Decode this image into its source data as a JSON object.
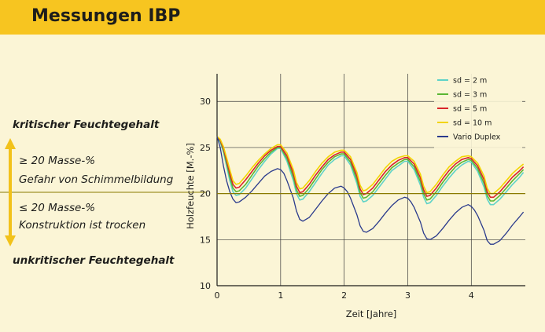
{
  "header": {
    "title": "Messungen IBP"
  },
  "side_labels": {
    "critical": "kritischer Feuchtegehalt",
    "above_line1": "≥ 20 Masse-%",
    "above_line2": "Gefahr von Schimmelbildung",
    "below_line1": "≤ 20 Masse-%",
    "below_line2": "Konstruktion ist trocken",
    "uncritical": "unkritischer Feuchtegehalt"
  },
  "colors": {
    "header_bg": "#f7c520",
    "page_bg": "#fbf5d6",
    "arrow": "#f2c21a",
    "threshold_line": "#8a7a00"
  },
  "chart_data": {
    "type": "line",
    "xlabel": "Zeit [Jahre]",
    "ylabel": "Holzfeuchte [M.-%]",
    "xlim": [
      0,
      4.85
    ],
    "ylim": [
      10,
      33
    ],
    "xticks": [
      0,
      1,
      2,
      3,
      4
    ],
    "yticks": [
      10,
      15,
      20,
      25,
      30
    ],
    "grid": true,
    "threshold": 20,
    "legend_position": "top-right",
    "series": [
      {
        "name": "sd = 2 m",
        "color": "#5fd3c8",
        "x": [
          0,
          0.05,
          0.1,
          0.15,
          0.2,
          0.25,
          0.3,
          0.35,
          0.45,
          0.55,
          0.65,
          0.75,
          0.85,
          0.95,
          1.0,
          1.1,
          1.2,
          1.25,
          1.3,
          1.35,
          1.45,
          1.55,
          1.65,
          1.75,
          1.85,
          1.95,
          2.0,
          2.1,
          2.2,
          2.25,
          2.3,
          2.35,
          2.45,
          2.55,
          2.65,
          2.75,
          2.85,
          2.95,
          3.0,
          3.1,
          3.2,
          3.25,
          3.3,
          3.35,
          3.45,
          3.55,
          3.65,
          3.75,
          3.85,
          3.95,
          4.0,
          4.1,
          4.2,
          4.25,
          4.3,
          4.35,
          4.45,
          4.55,
          4.65,
          4.75,
          4.82
        ],
        "y": [
          26.2,
          25.6,
          24.5,
          23,
          21.4,
          20.2,
          19.8,
          19.9,
          20.6,
          21.6,
          22.6,
          23.5,
          24.3,
          24.9,
          24.9,
          23.5,
          21.4,
          20,
          19.3,
          19.4,
          20.2,
          21.2,
          22.2,
          23.1,
          23.7,
          24.1,
          24.1,
          23.1,
          21.1,
          19.7,
          19.1,
          19.2,
          19.8,
          20.7,
          21.6,
          22.5,
          23,
          23.5,
          23.5,
          22.6,
          20.9,
          19.6,
          18.9,
          19,
          19.8,
          20.8,
          21.7,
          22.5,
          23.1,
          23.5,
          23.4,
          22.4,
          20.7,
          19.4,
          18.8,
          18.8,
          19.4,
          20.2,
          21,
          21.7,
          22.3
        ]
      },
      {
        "name": "sd = 3 m",
        "color": "#5bb634",
        "x": [
          0,
          0.05,
          0.1,
          0.15,
          0.2,
          0.25,
          0.3,
          0.35,
          0.45,
          0.55,
          0.65,
          0.75,
          0.85,
          0.95,
          1.0,
          1.1,
          1.2,
          1.25,
          1.3,
          1.35,
          1.45,
          1.55,
          1.65,
          1.75,
          1.85,
          1.95,
          2.0,
          2.1,
          2.2,
          2.25,
          2.3,
          2.35,
          2.45,
          2.55,
          2.65,
          2.75,
          2.85,
          2.95,
          3.0,
          3.1,
          3.2,
          3.25,
          3.3,
          3.35,
          3.45,
          3.55,
          3.65,
          3.75,
          3.85,
          3.95,
          4.0,
          4.1,
          4.2,
          4.25,
          4.3,
          4.35,
          4.45,
          4.55,
          4.65,
          4.75,
          4.82
        ],
        "y": [
          26.2,
          25.7,
          24.7,
          23.3,
          21.8,
          20.6,
          20.2,
          20.3,
          21,
          22,
          23,
          23.8,
          24.5,
          25,
          25,
          23.8,
          21.8,
          20.4,
          19.7,
          19.8,
          20.6,
          21.6,
          22.6,
          23.4,
          24,
          24.3,
          24.3,
          23.4,
          21.5,
          20.1,
          19.5,
          19.6,
          20.2,
          21.1,
          22,
          22.8,
          23.3,
          23.7,
          23.7,
          22.9,
          21.3,
          20,
          19.3,
          19.4,
          20.2,
          21.2,
          22.1,
          22.9,
          23.4,
          23.7,
          23.6,
          22.7,
          21.1,
          19.8,
          19.2,
          19.2,
          19.8,
          20.6,
          21.4,
          22.1,
          22.6
        ]
      },
      {
        "name": "sd = 5 m",
        "color": "#d9252a",
        "x": [
          0,
          0.05,
          0.1,
          0.15,
          0.2,
          0.25,
          0.3,
          0.35,
          0.45,
          0.55,
          0.65,
          0.75,
          0.85,
          0.95,
          1.0,
          1.1,
          1.2,
          1.25,
          1.3,
          1.35,
          1.45,
          1.55,
          1.65,
          1.75,
          1.85,
          1.95,
          2.0,
          2.1,
          2.2,
          2.25,
          2.3,
          2.35,
          2.45,
          2.55,
          2.65,
          2.75,
          2.85,
          2.95,
          3.0,
          3.1,
          3.2,
          3.25,
          3.3,
          3.35,
          3.45,
          3.55,
          3.65,
          3.75,
          3.85,
          3.95,
          4.0,
          4.1,
          4.2,
          4.25,
          4.3,
          4.35,
          4.45,
          4.55,
          4.65,
          4.75,
          4.82
        ],
        "y": [
          26.2,
          25.8,
          24.9,
          23.6,
          22.2,
          21,
          20.6,
          20.7,
          21.5,
          22.4,
          23.3,
          24.1,
          24.7,
          25.1,
          25.1,
          24.1,
          22.2,
          20.8,
          20.1,
          20.2,
          21,
          22,
          22.9,
          23.7,
          24.2,
          24.5,
          24.5,
          23.7,
          21.9,
          20.5,
          19.9,
          20,
          20.6,
          21.5,
          22.4,
          23.1,
          23.6,
          23.9,
          23.9,
          23.2,
          21.7,
          20.4,
          19.7,
          19.8,
          20.6,
          21.6,
          22.5,
          23.2,
          23.7,
          23.9,
          23.8,
          23,
          21.5,
          20.2,
          19.6,
          19.6,
          20.2,
          21,
          21.8,
          22.4,
          22.9
        ]
      },
      {
        "name": "sd = 10 m",
        "color": "#f2d400",
        "x": [
          0,
          0.05,
          0.1,
          0.15,
          0.2,
          0.25,
          0.3,
          0.35,
          0.45,
          0.55,
          0.65,
          0.75,
          0.85,
          0.95,
          1.0,
          1.1,
          1.2,
          1.25,
          1.3,
          1.35,
          1.45,
          1.55,
          1.65,
          1.75,
          1.85,
          1.95,
          2.0,
          2.1,
          2.2,
          2.25,
          2.3,
          2.35,
          2.45,
          2.55,
          2.65,
          2.75,
          2.85,
          2.95,
          3.0,
          3.1,
          3.2,
          3.25,
          3.3,
          3.35,
          3.45,
          3.55,
          3.65,
          3.75,
          3.85,
          3.95,
          4.0,
          4.1,
          4.2,
          4.25,
          4.3,
          4.35,
          4.45,
          4.55,
          4.65,
          4.75,
          4.82
        ],
        "y": [
          26.2,
          25.9,
          25.1,
          23.9,
          22.6,
          21.4,
          21,
          21.1,
          21.9,
          22.8,
          23.6,
          24.3,
          24.9,
          25.3,
          25.3,
          24.4,
          22.6,
          21.2,
          20.5,
          20.6,
          21.4,
          22.4,
          23.3,
          24,
          24.5,
          24.7,
          24.7,
          24,
          22.3,
          20.9,
          20.3,
          20.4,
          21,
          21.9,
          22.8,
          23.5,
          23.9,
          24.1,
          24.1,
          23.5,
          22.1,
          20.8,
          20.1,
          20.2,
          21,
          22,
          22.9,
          23.5,
          24,
          24.1,
          24,
          23.3,
          21.9,
          20.6,
          20,
          20,
          20.6,
          21.4,
          22.2,
          22.8,
          23.2
        ]
      },
      {
        "name": "Vario Duplex",
        "color": "#2a3a8c",
        "x": [
          0,
          0.05,
          0.1,
          0.15,
          0.2,
          0.25,
          0.3,
          0.35,
          0.45,
          0.55,
          0.65,
          0.75,
          0.85,
          0.95,
          1.0,
          1.05,
          1.1,
          1.2,
          1.25,
          1.3,
          1.35,
          1.45,
          1.55,
          1.65,
          1.75,
          1.85,
          1.95,
          2.0,
          2.05,
          2.1,
          2.2,
          2.25,
          2.3,
          2.35,
          2.45,
          2.55,
          2.65,
          2.75,
          2.85,
          2.95,
          3.0,
          3.05,
          3.1,
          3.2,
          3.25,
          3.3,
          3.35,
          3.45,
          3.55,
          3.65,
          3.75,
          3.85,
          3.95,
          4.0,
          4.05,
          4.1,
          4.2,
          4.25,
          4.3,
          4.35,
          4.45,
          4.55,
          4.65,
          4.75,
          4.82
        ],
        "y": [
          26.2,
          25,
          23,
          21.4,
          20.2,
          19.4,
          19,
          19.1,
          19.6,
          20.3,
          21.1,
          21.9,
          22.4,
          22.7,
          22.6,
          22.2,
          21.4,
          19.5,
          18.1,
          17.2,
          17,
          17.4,
          18.3,
          19.2,
          20,
          20.6,
          20.8,
          20.6,
          20.2,
          19.5,
          17.7,
          16.5,
          15.9,
          15.8,
          16.2,
          17,
          17.9,
          18.7,
          19.3,
          19.6,
          19.5,
          19.1,
          18.5,
          16.9,
          15.7,
          15.1,
          15,
          15.4,
          16.2,
          17.1,
          17.9,
          18.5,
          18.8,
          18.6,
          18.2,
          17.6,
          16,
          14.9,
          14.5,
          14.5,
          14.9,
          15.7,
          16.6,
          17.4,
          18
        ]
      }
    ]
  }
}
